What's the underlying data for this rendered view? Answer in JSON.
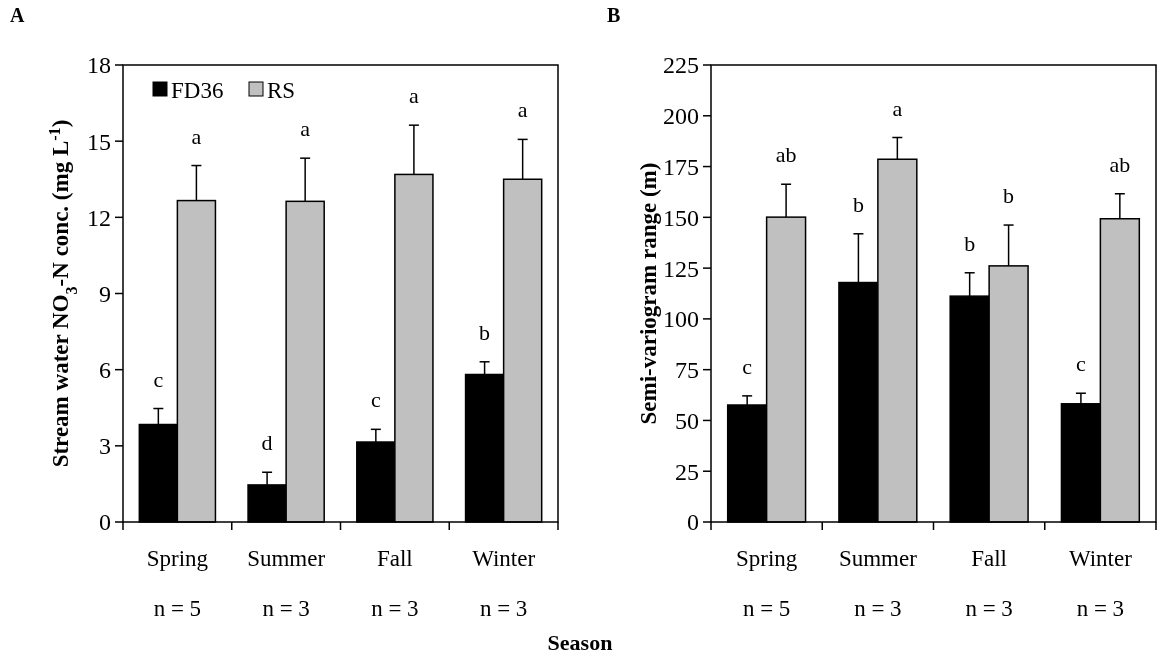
{
  "chart_data": [
    {
      "type": "bar",
      "title": "A",
      "xlabel": "Season",
      "ylabel": "Stream water NO$_{3}$-N conc. (mg L$^{-1}$)",
      "categories": [
        "Spring\nn = 5",
        "Summer\nn = 3",
        "Fall\nn = 3",
        "Winter\nn = 3"
      ],
      "ylim": [
        0,
        18
      ],
      "yticks": [
        0,
        3,
        6,
        9,
        12,
        15,
        18
      ],
      "grid": false,
      "legend": "top left",
      "series": [
        {
          "name": "FD36",
          "color": "#000000",
          "values": [
            3.84,
            1.46,
            3.15,
            5.81
          ],
          "errors": [
            [
              3.84,
              4.47
            ],
            [
              1.46,
              1.96
            ],
            [
              3.15,
              3.65
            ],
            [
              5.81,
              6.31
            ]
          ],
          "value_labels": [
            "c",
            "d",
            "c",
            "b"
          ]
        },
        {
          "name": "RS",
          "color": "#c0c0c0",
          "values": [
            12.66,
            12.63,
            13.69,
            13.5
          ],
          "errors": [
            [
              12.66,
              14.04
            ],
            [
              12.63,
              14.33
            ],
            [
              13.69,
              15.63
            ],
            [
              13.5,
              15.07
            ]
          ],
          "value_labels": [
            "a",
            "a",
            "a",
            "a"
          ]
        }
      ]
    },
    {
      "type": "bar",
      "title": "B",
      "ylabel": "Semi-variogram range (m)",
      "categories": [
        "Spring\nn = 5",
        "Summer\nn = 3",
        "Fall\nn = 3",
        "Winter\nn = 3"
      ],
      "ylim": [
        0,
        225
      ],
      "yticks": [
        0,
        25,
        50,
        75,
        100,
        125,
        150,
        175,
        200,
        225
      ],
      "grid": false,
      "series": [
        {
          "color": "#000000",
          "values": [
            57.6,
            117.9,
            111.2,
            58.2
          ],
          "errors": [
            [
              57.6,
              62.1
            ],
            [
              117.9,
              141.9
            ],
            [
              111.2,
              122.7
            ],
            [
              58.2,
              63.4
            ]
          ],
          "value_labels": [
            "c",
            "b",
            "b",
            "c"
          ]
        },
        {
          "color": "#c0c0c0",
          "values": [
            150.1,
            178.6,
            126.1,
            149.3
          ],
          "errors": [
            [
              150.1,
              166.3
            ],
            [
              178.6,
              189.3
            ],
            [
              126.1,
              146.2
            ],
            [
              149.3,
              161.6
            ]
          ],
          "value_labels": [
            "ab",
            "a",
            "b",
            "ab"
          ]
        }
      ]
    }
  ]
}
